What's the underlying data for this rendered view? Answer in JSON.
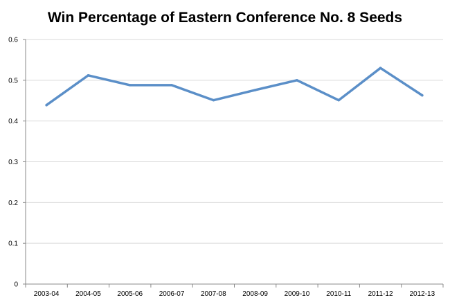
{
  "chart_data": {
    "type": "line",
    "title": "Win Percentage of Eastern Conference No. 8 Seeds",
    "xlabel": "",
    "ylabel": "",
    "categories": [
      "2003-04",
      "2004-05",
      "2005-06",
      "2006-07",
      "2007-08",
      "2008-09",
      "2009-10",
      "2010-11",
      "2011-12",
      "2012-13"
    ],
    "series": [
      {
        "values": [
          0.439,
          0.512,
          0.488,
          0.488,
          0.451,
          0.476,
          0.5,
          0.451,
          0.53,
          0.463
        ]
      }
    ],
    "ylim": [
      0,
      0.6
    ],
    "yticks": [
      "0",
      "0.1",
      "0.2",
      "0.3",
      "0.4",
      "0.5",
      "0.6"
    ],
    "grid": true,
    "legend": "none",
    "colors": {
      "line": "#5b8fc8",
      "grid": "#d9d9d9",
      "axis": "#888888"
    }
  }
}
